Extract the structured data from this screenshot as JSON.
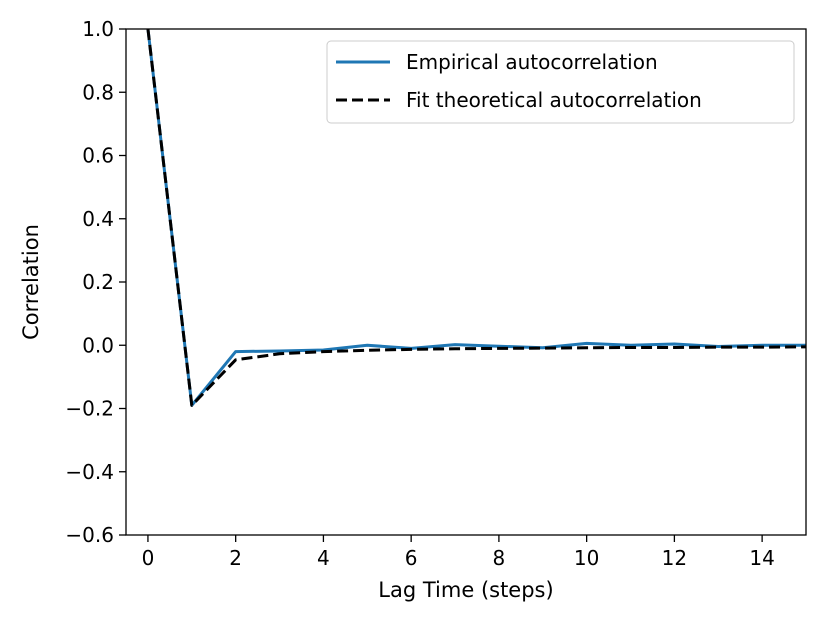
{
  "chart_data": {
    "type": "line",
    "xlabel": "Lag Time (steps)",
    "ylabel": "Correlation",
    "xlim": [
      -0.5,
      15
    ],
    "ylim": [
      -0.6,
      1.0
    ],
    "xticks": [
      0,
      2,
      4,
      6,
      8,
      10,
      12,
      14
    ],
    "yticks": [
      1.0,
      0.8,
      0.6,
      0.4,
      0.2,
      0.0,
      -0.2,
      -0.4,
      -0.6
    ],
    "xtick_labels": [
      "0",
      "2",
      "4",
      "6",
      "8",
      "10",
      "12",
      "14"
    ],
    "ytick_labels": [
      "1.0",
      "0.8",
      "0.6",
      "0.4",
      "0.2",
      "0.0",
      "−0.2",
      "−0.4",
      "−0.6"
    ],
    "legend_position": "top-right",
    "grid": false,
    "x": [
      0,
      1,
      2,
      3,
      4,
      5,
      6,
      7,
      8,
      9,
      10,
      11,
      12,
      13,
      14,
      15
    ],
    "series": [
      {
        "name": "Empirical autocorrelation",
        "color": "#1f77b4",
        "style": "solid",
        "values": [
          1.0,
          -0.19,
          -0.02,
          -0.018,
          -0.015,
          0.0,
          -0.01,
          0.002,
          -0.003,
          -0.008,
          0.006,
          0.0,
          0.004,
          -0.004,
          0.0,
          0.0
        ]
      },
      {
        "name": "Fit theoretical autocorrelation",
        "color": "#000000",
        "style": "dashed",
        "values": [
          1.0,
          -0.19,
          -0.046,
          -0.027,
          -0.02,
          -0.016,
          -0.013,
          -0.011,
          -0.01,
          -0.009,
          -0.008,
          -0.007,
          -0.007,
          -0.006,
          -0.006,
          -0.005
        ]
      }
    ]
  }
}
